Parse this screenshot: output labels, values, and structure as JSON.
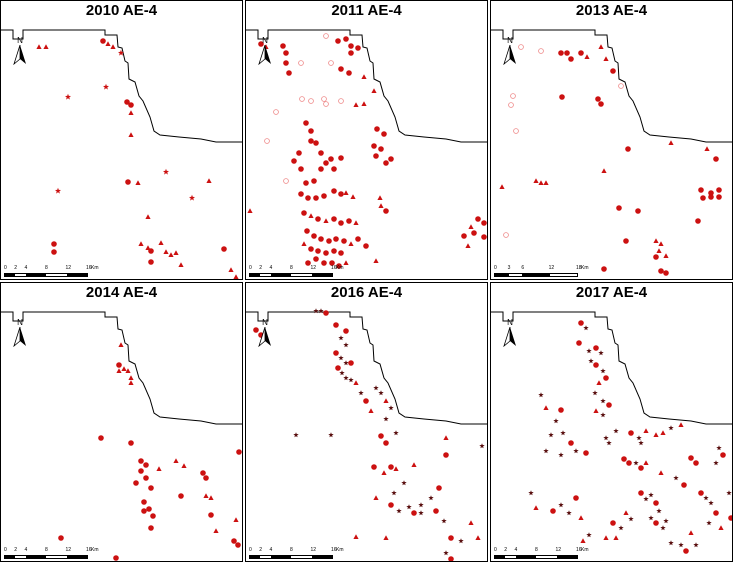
{
  "panels": [
    {
      "title": "2010 AE-4",
      "id": "2010",
      "scale": {
        "ticks": [
          "0",
          "2",
          "4",
          "8",
          "12",
          "16"
        ],
        "unit": "Km"
      }
    },
    {
      "title": "2011 AE-4",
      "id": "2011",
      "scale": {
        "ticks": [
          "0",
          "2",
          "4",
          "8",
          "12",
          "16"
        ],
        "unit": "Km"
      }
    },
    {
      "title": "2013 AE-4",
      "id": "2013",
      "scale": {
        "ticks": [
          "0",
          "3",
          "6",
          "12",
          "18"
        ],
        "unit": "Km"
      }
    },
    {
      "title": "2014 AE-4",
      "id": "2014",
      "scale": {
        "ticks": [
          "0",
          "2",
          "4",
          "8",
          "12",
          "16"
        ],
        "unit": "Km"
      }
    },
    {
      "title": "2016 AE-4",
      "id": "2016",
      "scale": {
        "ticks": [
          "0",
          "2",
          "4",
          "8",
          "12",
          "16"
        ],
        "unit": "Km"
      }
    },
    {
      "title": "2017 AE-4",
      "id": "2017",
      "scale": {
        "ticks": [
          "0",
          "2",
          "4",
          "8",
          "12",
          "16"
        ],
        "unit": "Km"
      }
    }
  ],
  "north_arrow": {
    "label": "N"
  },
  "colors": {
    "marker": "#cc1111",
    "dark_marker": "#5a1010",
    "outline": "#000000"
  }
}
